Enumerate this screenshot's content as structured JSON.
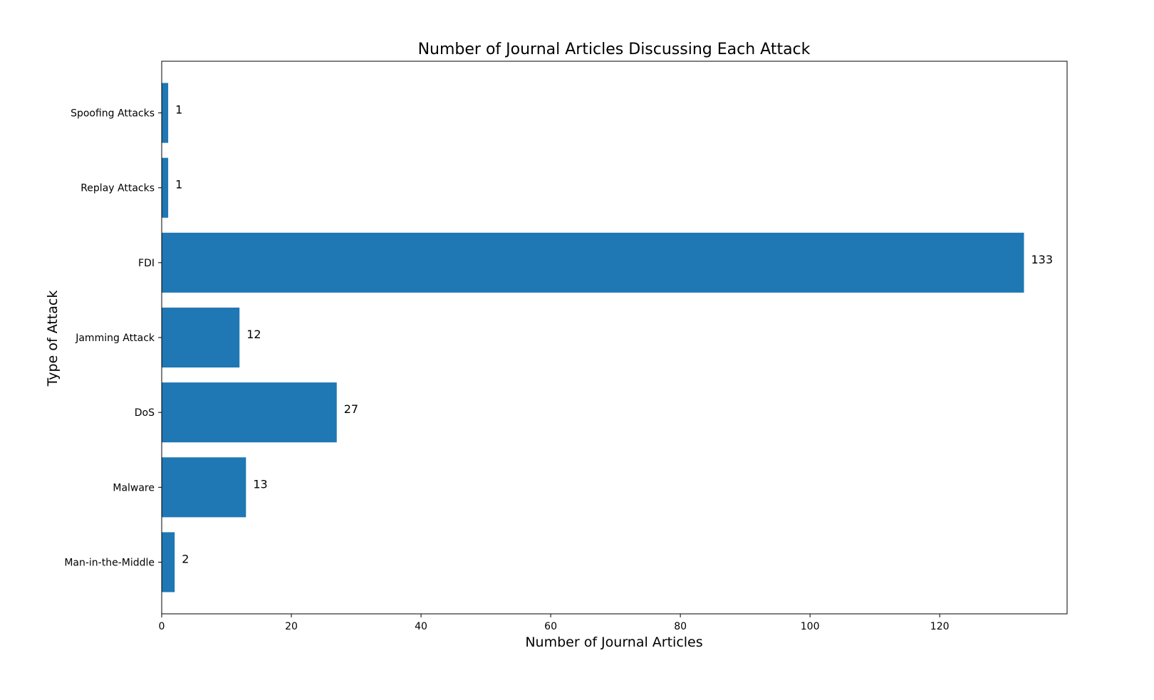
{
  "chart_data": {
    "type": "bar",
    "orientation": "horizontal",
    "title": "Number of Journal Articles Discussing Each Attack",
    "xlabel": "Number of Journal Articles",
    "ylabel": "Type of Attack",
    "categories": [
      "Man-in-the-Middle",
      "Malware",
      "DoS",
      "Jamming Attack",
      "FDI",
      "Replay Attacks",
      "Spoofing Attacks"
    ],
    "values": [
      2,
      13,
      27,
      12,
      133,
      1,
      1
    ],
    "data_labels": [
      "2",
      "13",
      "27",
      "12",
      "133",
      "1",
      "1"
    ],
    "xlim": [
      0,
      139.65
    ],
    "xticks": [
      0,
      20,
      40,
      60,
      80,
      100,
      120
    ],
    "xtick_labels": [
      "0",
      "20",
      "40",
      "60",
      "80",
      "100",
      "120"
    ],
    "bar_color": "#1f77b4",
    "grid": false,
    "legend": "none"
  }
}
